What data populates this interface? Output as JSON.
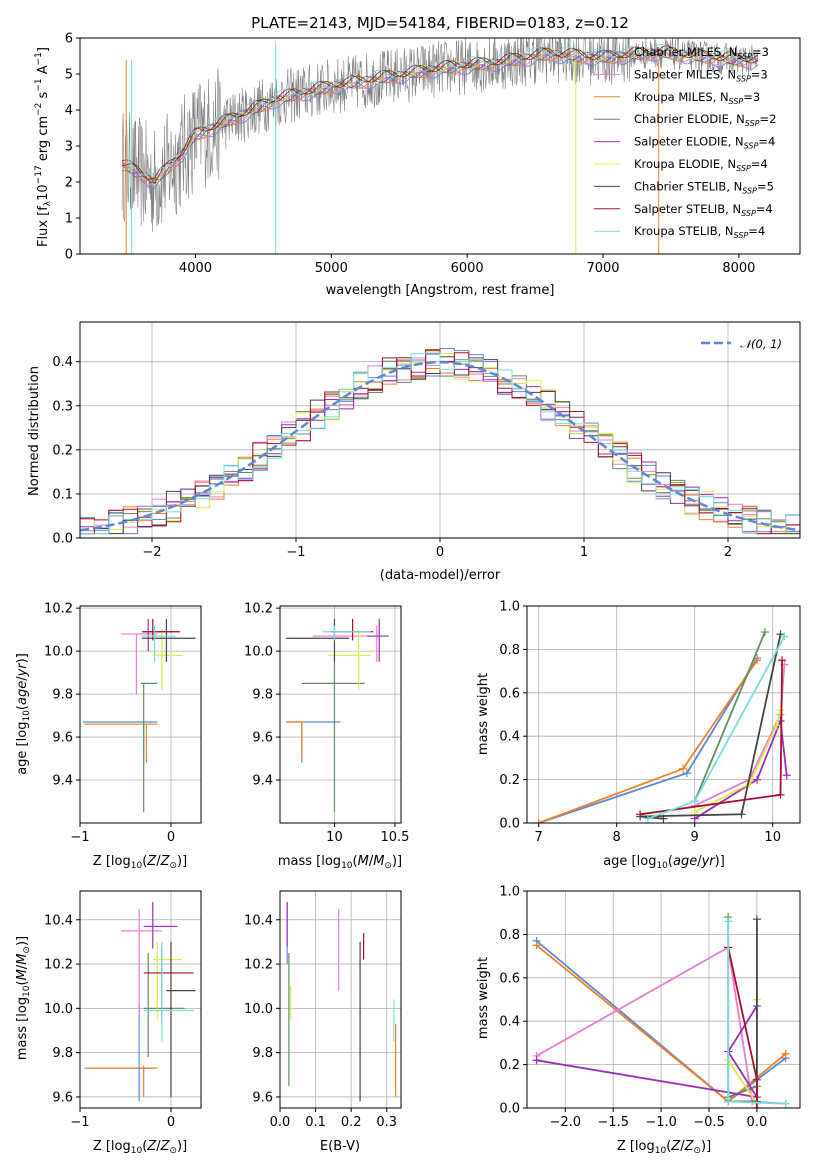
{
  "colors": {
    "chab_miles": "#5f86d8",
    "salp_miles": "#ec7bd1",
    "krou_miles": "#f08028",
    "chab_elodie": "#5f8f5f",
    "salp_elodie": "#9b2fb8",
    "krou_elodie": "#d8ee4a",
    "chab_stelib": "#444444",
    "salp_stelib": "#a8102a",
    "krou_stelib": "#79dbe0",
    "data": "#808080",
    "normal": "#5f86d8"
  },
  "series_names": [
    "Chabrier MILES, N_SSP=3",
    "Salpeter MILES, N_SSP=3",
    "Kroupa MILES, N_SSP=3",
    "Chabrier ELODIE, N_SSP=2",
    "Salpeter ELODIE, N_SSP=4",
    "Kroupa ELODIE, N_SSP=4",
    "Chabrier STELIB, N_SSP=5",
    "Salpeter STELIB, N_SSP=4",
    "Kroupa STELIB, N_SSP=4"
  ],
  "chart_data": [
    {
      "type": "line",
      "title": "PLATE=2143, MJD=54184, FIBERID=0183, z=0.12",
      "xlabel": "wavelength [Angstrom, rest frame]",
      "ylabel": "Flux [f_λ 10^-17 erg cm^-2 s^-1 A^-1]",
      "xlim": [
        3150,
        8450
      ],
      "ylim": [
        0,
        6
      ],
      "xticks": [
        4000,
        5000,
        6000,
        7000,
        8000
      ],
      "yticks": [
        0,
        1,
        2,
        3,
        4,
        5,
        6
      ],
      "legend_position": "right",
      "legend": [
        {
          "pre": "Chabrier MILES, N",
          "sub": "SSP",
          "post": "=3"
        },
        {
          "pre": "Salpeter MILES, N",
          "sub": "SSP",
          "post": "=3"
        },
        {
          "pre": "Kroupa MILES, N",
          "sub": "SSP",
          "post": "=3"
        },
        {
          "pre": "Chabrier ELODIE, N",
          "sub": "SSP",
          "post": "=2"
        },
        {
          "pre": "Salpeter ELODIE, N",
          "sub": "SSP",
          "post": "=4"
        },
        {
          "pre": "Kroupa ELODIE, N",
          "sub": "SSP",
          "post": "=4"
        },
        {
          "pre": "Chabrier STELIB, N",
          "sub": "SSP",
          "post": "=5"
        },
        {
          "pre": "Salpeter STELIB, N",
          "sub": "SSP",
          "post": "=4"
        },
        {
          "pre": "Kroupa STELIB, N",
          "sub": "SSP",
          "post": "=4"
        }
      ],
      "continuum": [
        [
          3460,
          2.5
        ],
        [
          3700,
          2.0
        ],
        [
          3900,
          2.8
        ],
        [
          4000,
          3.3
        ],
        [
          4300,
          3.8
        ],
        [
          4600,
          4.3
        ],
        [
          5000,
          4.65
        ],
        [
          5400,
          4.9
        ],
        [
          5800,
          5.15
        ],
        [
          6200,
          5.3
        ],
        [
          6600,
          5.55
        ],
        [
          7000,
          5.45
        ],
        [
          7400,
          5.6
        ],
        [
          7800,
          5.45
        ],
        [
          8150,
          5.35
        ]
      ]
    },
    {
      "type": "step",
      "xlabel": "(data-model)/error",
      "ylabel": "Normed distribution",
      "xlim": [
        -2.5,
        2.5
      ],
      "ylim": [
        0,
        0.49
      ],
      "xticks": [
        -2,
        -1,
        0,
        1,
        2
      ],
      "yticks": [
        0.0,
        0.1,
        0.2,
        0.3,
        0.4
      ],
      "legend": "𝒩(0, 1)",
      "legend_position": "top-right",
      "reference_curve": "normal(0,1)"
    },
    {
      "type": "errorbar",
      "xlabel": "Z [log10(Z/Z☉)]",
      "ylabel": "age [log10(age/yr)]",
      "xlim": [
        -1.0,
        0.33
      ],
      "ylim": [
        9.2,
        10.21
      ],
      "xticks": [
        -1,
        0
      ],
      "yticks": [
        9.4,
        9.6,
        9.8,
        10.0,
        10.2
      ],
      "points": [
        {
          "s": 0,
          "x": -0.3,
          "xe": [
            -0.97,
            -0.15
          ],
          "y": 9.67,
          "ye": [
            9.5,
            9.67
          ]
        },
        {
          "s": 1,
          "x": -0.38,
          "xe": [
            -0.55,
            -0.15
          ],
          "y": 10.08,
          "ye": [
            9.8,
            10.08
          ]
        },
        {
          "s": 2,
          "x": -0.27,
          "xe": [
            -0.95,
            -0.15
          ],
          "y": 9.66,
          "ye": [
            9.48,
            9.66
          ]
        },
        {
          "s": 3,
          "x": -0.3,
          "xe": [
            -0.33,
            -0.15
          ],
          "y": 9.85,
          "ye": [
            9.25,
            9.85
          ]
        },
        {
          "s": 4,
          "x": -0.25,
          "xe": [
            -0.3,
            0.02
          ],
          "y": 10.09,
          "ye": [
            10.0,
            10.15
          ]
        },
        {
          "s": 5,
          "x": -0.1,
          "xe": [
            -0.2,
            0.13
          ],
          "y": 9.98,
          "ye": [
            9.82,
            10.1
          ]
        },
        {
          "s": 6,
          "x": -0.05,
          "xe": [
            -0.32,
            0.27
          ],
          "y": 10.06,
          "ye": [
            9.95,
            10.15
          ]
        },
        {
          "s": 7,
          "x": -0.2,
          "xe": [
            -0.32,
            0.1
          ],
          "y": 10.09,
          "ye": [
            10.05,
            10.15
          ]
        },
        {
          "s": 8,
          "x": -0.18,
          "xe": [
            -0.33,
            0.05
          ],
          "y": 10.07,
          "ye": [
            9.95,
            10.12
          ]
        }
      ]
    },
    {
      "type": "errorbar",
      "xlabel": "mass [log10(M/M☉)]",
      "ylabel": "",
      "xlim": [
        9.55,
        10.55
      ],
      "ylim": [
        9.2,
        10.21
      ],
      "xticks": [
        10.0,
        10.5
      ],
      "yticks": [
        9.4,
        9.6,
        9.8,
        10.0,
        10.2
      ],
      "points": [
        {
          "s": 0,
          "x": 9.73,
          "xe": [
            9.6,
            10.05
          ],
          "y": 9.67,
          "ye": [
            9.48,
            9.67
          ]
        },
        {
          "s": 1,
          "x": 10.35,
          "xe": [
            9.82,
            10.43
          ],
          "y": 10.07,
          "ye": [
            9.95,
            10.12
          ]
        },
        {
          "s": 2,
          "x": 9.73,
          "xe": [
            9.6,
            9.74
          ],
          "y": 9.67,
          "ye": [
            9.5,
            9.67
          ]
        },
        {
          "s": 3,
          "x": 10.0,
          "xe": [
            9.73,
            10.25
          ],
          "y": 9.85,
          "ye": [
            9.25,
            9.95
          ]
        },
        {
          "s": 4,
          "x": 10.37,
          "xe": [
            10.27,
            10.45
          ],
          "y": 10.07,
          "ye": [
            9.95,
            10.15
          ]
        },
        {
          "s": 5,
          "x": 10.2,
          "xe": [
            9.95,
            10.3
          ],
          "y": 9.98,
          "ye": [
            9.82,
            10.1
          ]
        },
        {
          "s": 6,
          "x": 10.0,
          "xe": [
            9.6,
            10.12
          ],
          "y": 10.06,
          "ye": [
            9.95,
            10.15
          ]
        },
        {
          "s": 7,
          "x": 10.15,
          "xe": [
            9.97,
            10.32
          ],
          "y": 10.09,
          "ye": [
            10.05,
            10.15
          ]
        },
        {
          "s": 8,
          "x": 10.0,
          "xe": [
            9.9,
            10.3
          ],
          "y": 10.09,
          "ye": [
            10.05,
            10.12
          ]
        }
      ]
    },
    {
      "type": "line",
      "xlabel": "age [log10(age/yr)]",
      "ylabel": "mass weight",
      "xlim": [
        6.85,
        10.35
      ],
      "ylim": [
        0,
        1.0
      ],
      "xticks": [
        7,
        8,
        9,
        10
      ],
      "yticks": [
        0.0,
        0.2,
        0.4,
        0.6,
        0.8,
        1.0
      ],
      "series": [
        {
          "s": 0,
          "points": [
            [
              7.0,
              0.0
            ],
            [
              8.9,
              0.23
            ],
            [
              9.8,
              0.76
            ]
          ]
        },
        {
          "s": 2,
          "points": [
            [
              7.0,
              0.0
            ],
            [
              8.85,
              0.25
            ],
            [
              9.8,
              0.75
            ]
          ]
        },
        {
          "s": 1,
          "points": [
            [
              9.0,
              0.08
            ],
            [
              9.7,
              0.2
            ],
            [
              10.1,
              0.5
            ],
            [
              10.15,
              0.73
            ]
          ]
        },
        {
          "s": 3,
          "points": [
            [
              9.0,
              0.1
            ],
            [
              9.9,
              0.88
            ]
          ]
        },
        {
          "s": 4,
          "points": [
            [
              9.0,
              0.02
            ],
            [
              9.8,
              0.2
            ],
            [
              10.1,
              0.47
            ],
            [
              10.18,
              0.22
            ]
          ]
        },
        {
          "s": 5,
          "points": [
            [
              9.0,
              0.05
            ],
            [
              9.7,
              0.18
            ],
            [
              10.05,
              0.45
            ],
            [
              10.1,
              0.52
            ]
          ]
        },
        {
          "s": 6,
          "points": [
            [
              8.6,
              0.02
            ],
            [
              8.3,
              0.03
            ],
            [
              9.6,
              0.04
            ],
            [
              10.1,
              0.87
            ]
          ]
        },
        {
          "s": 7,
          "points": [
            [
              8.3,
              0.04
            ],
            [
              10.1,
              0.13
            ],
            [
              10.12,
              0.75
            ]
          ]
        },
        {
          "s": 8,
          "points": [
            [
              8.4,
              0.02
            ],
            [
              9.0,
              0.1
            ],
            [
              10.15,
              0.86
            ]
          ]
        }
      ]
    },
    {
      "type": "errorbar",
      "xlabel": "Z [log10(Z/Z☉)]",
      "ylabel": "mass [log10(M/M☉)]",
      "xlim": [
        -1.0,
        0.33
      ],
      "ylim": [
        9.55,
        10.53
      ],
      "xticks": [
        -1,
        0
      ],
      "yticks": [
        9.6,
        9.8,
        10.0,
        10.2,
        10.4
      ],
      "points": [
        {
          "s": 0,
          "x": -0.35,
          "xe": [
            -0.92,
            -0.2
          ],
          "y": 9.73,
          "ye": [
            9.58,
            10.02
          ]
        },
        {
          "s": 1,
          "x": -0.35,
          "xe": [
            -0.55,
            -0.1
          ],
          "y": 10.35,
          "ye": [
            9.97,
            10.45
          ]
        },
        {
          "s": 2,
          "x": -0.3,
          "xe": [
            -0.95,
            -0.15
          ],
          "y": 9.73,
          "ye": [
            9.6,
            9.74
          ]
        },
        {
          "s": 3,
          "x": -0.25,
          "xe": [
            -0.3,
            0.15
          ],
          "y": 10.0,
          "ye": [
            9.78,
            10.25
          ]
        },
        {
          "s": 4,
          "x": -0.2,
          "xe": [
            -0.3,
            0.07
          ],
          "y": 10.37,
          "ye": [
            10.27,
            10.48
          ]
        },
        {
          "s": 5,
          "x": -0.15,
          "xe": [
            -0.2,
            0.12
          ],
          "y": 10.22,
          "ye": [
            9.95,
            10.3
          ]
        },
        {
          "s": 6,
          "x": 0.0,
          "xe": [
            -0.05,
            0.27
          ],
          "y": 10.08,
          "ye": [
            9.6,
            10.3
          ]
        },
        {
          "s": 7,
          "x": -0.1,
          "xe": [
            -0.3,
            0.25
          ],
          "y": 10.16,
          "ye": [
            9.95,
            10.28
          ]
        },
        {
          "s": 8,
          "x": -0.1,
          "xe": [
            -0.3,
            0.25
          ],
          "y": 9.99,
          "ye": [
            9.85,
            10.3
          ]
        }
      ]
    },
    {
      "type": "errorbar",
      "xlabel": "E(B-V)",
      "ylabel": "",
      "xlim": [
        0.0,
        0.34
      ],
      "ylim": [
        9.55,
        10.53
      ],
      "xticks": [
        0.0,
        0.1,
        0.2,
        0.3
      ],
      "xticklabels": [
        "0.0",
        "0.1",
        "0.2",
        "0.3"
      ],
      "yticks": [
        9.6,
        9.8,
        10.0,
        10.2,
        10.4
      ],
      "points": [
        {
          "s": 0,
          "x": 0.02,
          "y": 10.13,
          "ye": [
            10.2,
            10.48
          ]
        },
        {
          "s": 1,
          "x": 0.165,
          "y": 10.2,
          "ye": [
            10.08,
            10.45
          ]
        },
        {
          "s": 2,
          "x": 0.325,
          "y": 9.73,
          "ye": [
            9.6,
            9.93
          ]
        },
        {
          "s": 3,
          "x": 0.025,
          "y": 10.0,
          "ye": [
            9.65,
            10.25
          ]
        },
        {
          "s": 4,
          "x": 0.02,
          "y": 10.37,
          "ye": [
            10.28,
            10.48
          ]
        },
        {
          "s": 5,
          "x": 0.03,
          "y": 10.0,
          "ye": [
            9.95,
            10.1
          ]
        },
        {
          "s": 6,
          "x": 0.225,
          "y": 10.05,
          "ye": [
            9.58,
            10.3
          ]
        },
        {
          "s": 7,
          "x": 0.235,
          "y": 10.3,
          "ye": [
            10.22,
            10.34
          ]
        },
        {
          "s": 8,
          "x": 0.32,
          "y": 10.0,
          "ye": [
            9.85,
            10.04
          ]
        }
      ]
    },
    {
      "type": "line",
      "xlabel": "Z [log10(Z/Z☉)]",
      "ylabel": "mass weight",
      "xlim": [
        -2.4,
        0.45
      ],
      "ylim": [
        0,
        1.0
      ],
      "xticks": [
        -2.0,
        -1.5,
        -1.0,
        -0.5,
        0.0
      ],
      "xticklabels": [
        "−2.0",
        "−1.5",
        "−1.0",
        "−0.5",
        "0.0"
      ],
      "yticks": [
        0.0,
        0.2,
        0.4,
        0.6,
        0.8,
        1.0
      ],
      "series": [
        {
          "s": 0,
          "points": [
            [
              -2.3,
              0.77
            ],
            [
              -0.3,
              0.03
            ],
            [
              0.3,
              0.23
            ]
          ]
        },
        {
          "s": 2,
          "points": [
            [
              -2.3,
              0.75
            ],
            [
              -0.3,
              0.03
            ],
            [
              0.3,
              0.25
            ]
          ]
        },
        {
          "s": 1,
          "points": [
            [
              -2.3,
              0.24
            ],
            [
              -0.3,
              0.74
            ],
            [
              -0.05,
              0.03
            ],
            [
              0.3,
              0.02
            ]
          ]
        },
        {
          "s": 3,
          "points": [
            [
              -0.3,
              0.88
            ],
            [
              -0.3,
              0.05
            ],
            [
              0.0,
              0.1
            ]
          ]
        },
        {
          "s": 4,
          "points": [
            [
              -2.3,
              0.22
            ],
            [
              0.0,
              0.05
            ],
            [
              -0.3,
              0.26
            ],
            [
              0.0,
              0.47
            ]
          ]
        },
        {
          "s": 5,
          "points": [
            [
              -0.3,
              0.22
            ],
            [
              0.0,
              0.02
            ],
            [
              0.0,
              0.5
            ]
          ]
        },
        {
          "s": 6,
          "points": [
            [
              -0.3,
              0.03
            ],
            [
              0.0,
              0.03
            ],
            [
              0.0,
              0.87
            ]
          ]
        },
        {
          "s": 7,
          "points": [
            [
              -0.3,
              0.74
            ],
            [
              0.0,
              0.13
            ],
            [
              0.0,
              0.0
            ]
          ]
        },
        {
          "s": 8,
          "points": [
            [
              -0.3,
              0.86
            ],
            [
              -0.3,
              0.03
            ],
            [
              0.3,
              0.02
            ]
          ]
        }
      ]
    }
  ]
}
